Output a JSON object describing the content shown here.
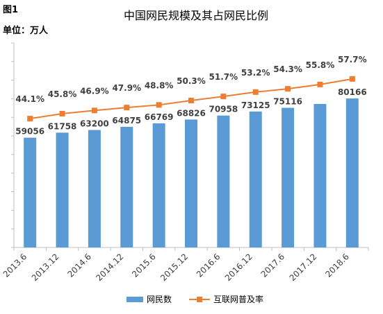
{
  "figure_label": "图1",
  "title": "中国网民规模及其占网民比例",
  "unit_label": "单位：万人",
  "colors": {
    "bar": "#5b9bd5",
    "line": "#ed7d31",
    "axis": "#bfbfbf",
    "label": "#404040"
  },
  "chart_data": {
    "type": "bar",
    "title": "中国网民规模及其占网民比例",
    "xlabel": "",
    "ylabel": "",
    "categories": [
      "2013.6",
      "2013.12",
      "2014.6",
      "2014.12",
      "2015.6",
      "2015.12",
      "2016.6",
      "2016.12",
      "2017.6",
      "2017.12",
      "2018.6"
    ],
    "series": [
      {
        "name": "网民数",
        "type": "bar",
        "axis": "left",
        "values": [
          59056,
          61758,
          63200,
          64875,
          66769,
          68826,
          70958,
          73125,
          75116,
          77198,
          80166
        ],
        "labels": [
          "59056",
          "61758",
          "63200",
          "64875",
          "66769",
          "68826",
          "70958",
          "73125",
          "75116",
          "",
          "80166"
        ]
      },
      {
        "name": "互联网普及率",
        "type": "line",
        "axis": "right",
        "values": [
          44.1,
          45.8,
          46.9,
          47.9,
          48.8,
          50.3,
          51.7,
          53.2,
          54.3,
          55.8,
          57.7
        ],
        "labels": [
          "44.1%",
          "45.8%",
          "46.9%",
          "47.9%",
          "48.8%",
          "50.3%",
          "51.7%",
          "53.2%",
          "54.3%",
          "55.8%",
          "57.7%"
        ]
      }
    ],
    "ylim": [
      0,
      110000
    ],
    "y2lim": [
      0,
      70
    ],
    "grid": false,
    "legend": "bottom-center"
  }
}
